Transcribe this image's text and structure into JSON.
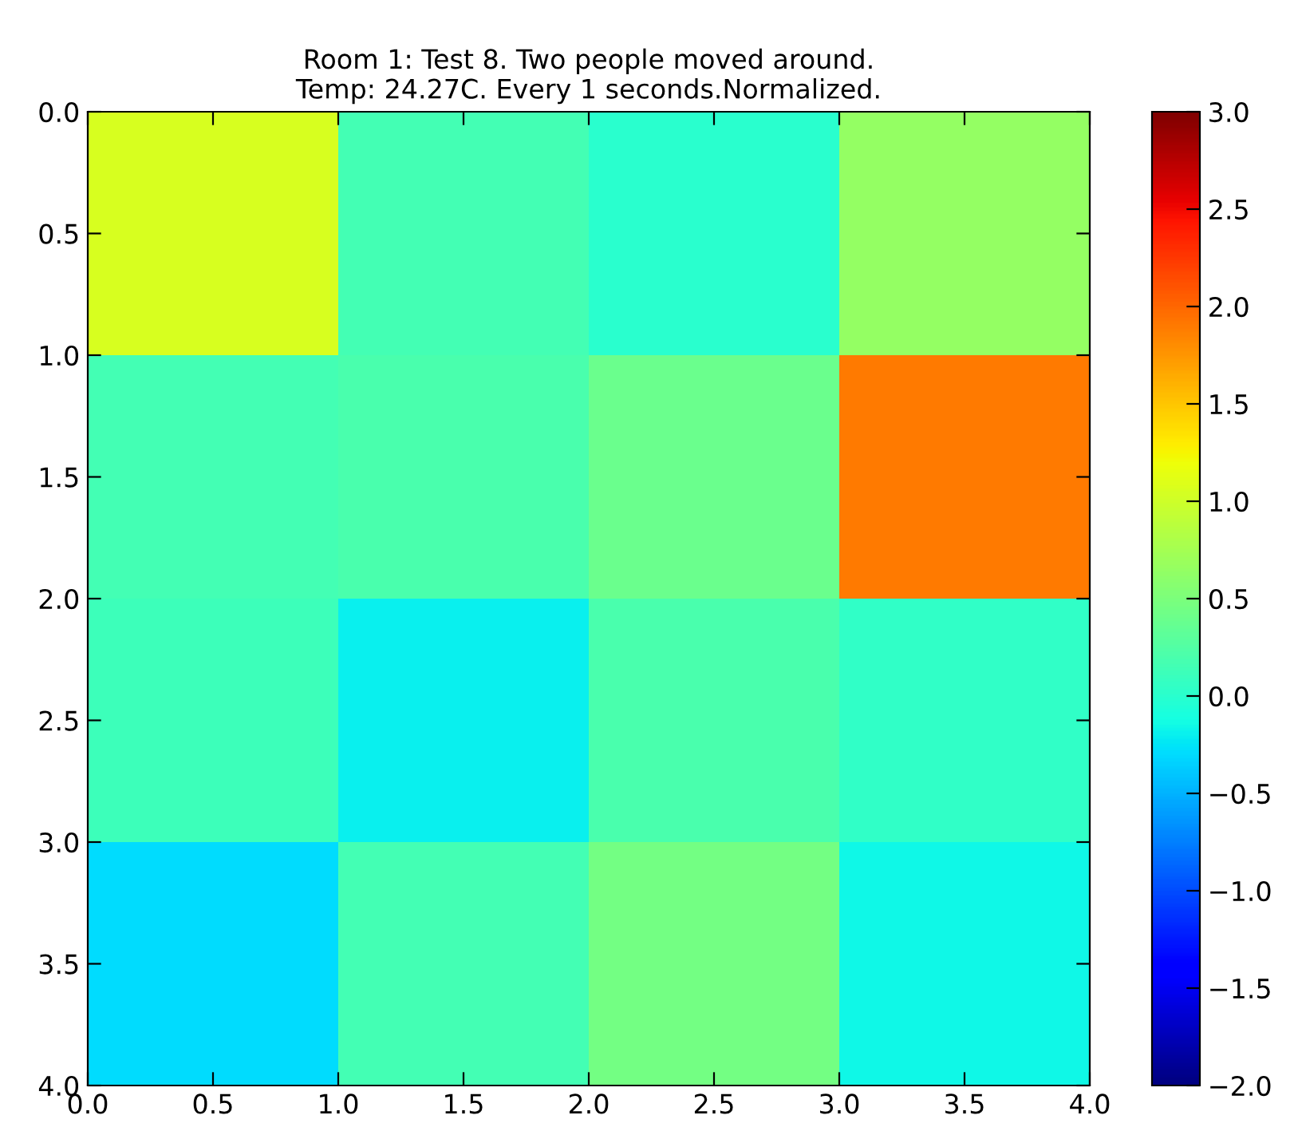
{
  "chart_data": {
    "type": "heatmap",
    "title": "Room 1: Test 8. Two people moved around.\nTemp: 24.27C. Every 1 seconds.Normalized.",
    "cells": [
      [
        1.05,
        0.15,
        0.0,
        0.65
      ],
      [
        0.15,
        0.2,
        0.4,
        1.9
      ],
      [
        0.12,
        -0.2,
        0.2,
        0.05
      ],
      [
        -0.3,
        0.15,
        0.45,
        -0.15
      ]
    ],
    "xlim": [
      0,
      4
    ],
    "ylim": [
      4,
      0
    ],
    "xticks": [
      {
        "value": 0,
        "label": "0.0"
      },
      {
        "value": 0.5,
        "label": "0.5"
      },
      {
        "value": 1,
        "label": "1.0"
      },
      {
        "value": 1.5,
        "label": "1.5"
      },
      {
        "value": 2,
        "label": "2.0"
      },
      {
        "value": 2.5,
        "label": "2.5"
      },
      {
        "value": 3,
        "label": "3.0"
      },
      {
        "value": 3.5,
        "label": "3.5"
      },
      {
        "value": 4,
        "label": "4.0"
      }
    ],
    "yticks": [
      {
        "value": 0,
        "label": "0.0"
      },
      {
        "value": 0.5,
        "label": "0.5"
      },
      {
        "value": 1,
        "label": "1.0"
      },
      {
        "value": 1.5,
        "label": "1.5"
      },
      {
        "value": 2,
        "label": "2.0"
      },
      {
        "value": 2.5,
        "label": "2.5"
      },
      {
        "value": 3,
        "label": "3.0"
      },
      {
        "value": 3.5,
        "label": "3.5"
      },
      {
        "value": 4,
        "label": "4.0"
      }
    ],
    "clim": [
      -2,
      3
    ],
    "cticks": [
      {
        "value": -2,
        "label": "−2.0"
      },
      {
        "value": -1.5,
        "label": "−1.5"
      },
      {
        "value": -1,
        "label": "−1.0"
      },
      {
        "value": -0.5,
        "label": "−0.5"
      },
      {
        "value": 0,
        "label": "0.0"
      },
      {
        "value": 0.5,
        "label": "0.5"
      },
      {
        "value": 1,
        "label": "1.0"
      },
      {
        "value": 1.5,
        "label": "1.5"
      },
      {
        "value": 2,
        "label": "2.0"
      },
      {
        "value": 2.5,
        "label": "2.5"
      },
      {
        "value": 3,
        "label": "3.0"
      }
    ]
  }
}
